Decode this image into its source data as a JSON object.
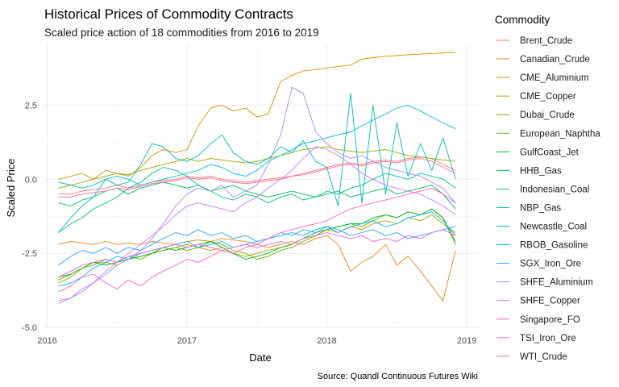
{
  "chart_data": {
    "type": "line",
    "title": "Historical Prices of Commodity Contracts",
    "subtitle": "Scaled price action of 18 commodities from 2016 to 2019",
    "xlabel": "Date",
    "ylabel": "Scaled Price",
    "caption": "Source: Quandl Continuous Futures Wiki",
    "legend_title": "Commodity",
    "legend_position": "right",
    "grid": true,
    "xlim": [
      2015.98,
      2019.08
    ],
    "ylim": [
      -5.05,
      4.55
    ],
    "x_ticks": [
      {
        "value": 2016,
        "label": "2016"
      },
      {
        "value": 2017,
        "label": "2017"
      },
      {
        "value": 2018,
        "label": "2018"
      },
      {
        "value": 2019,
        "label": "2019"
      }
    ],
    "y_ticks": [
      {
        "value": 2.5,
        "label": "2.5"
      },
      {
        "value": 0,
        "label": "0.0"
      },
      {
        "value": -2.5,
        "label": "-2.5"
      },
      {
        "value": -5,
        "label": "-5.0"
      }
    ],
    "x": [
      2016.08,
      2016.17,
      2016.25,
      2016.33,
      2016.42,
      2016.5,
      2016.58,
      2016.67,
      2016.75,
      2016.83,
      2016.92,
      2017.0,
      2017.08,
      2017.17,
      2017.25,
      2017.33,
      2017.42,
      2017.5,
      2017.58,
      2017.67,
      2017.75,
      2017.83,
      2017.92,
      2018.0,
      2018.08,
      2018.17,
      2018.25,
      2018.33,
      2018.42,
      2018.5,
      2018.58,
      2018.67,
      2018.75,
      2018.83,
      2018.92
    ],
    "series": [
      {
        "name": "Brent_Crude",
        "color": "#F8766D",
        "values": [
          -0.5,
          -0.5,
          -0.4,
          -0.35,
          -0.3,
          -0.2,
          -0.3,
          -0.2,
          -0.1,
          -0.05,
          0.0,
          0.1,
          0.05,
          0.1,
          0.0,
          -0.05,
          -0.1,
          -0.05,
          0.0,
          0.05,
          0.1,
          0.2,
          0.3,
          0.4,
          0.5,
          0.55,
          0.5,
          0.6,
          0.65,
          0.6,
          0.7,
          0.75,
          0.7,
          0.5,
          0.3
        ]
      },
      {
        "name": "Canadian_Crude",
        "color": "#E7861B",
        "values": [
          -2.2,
          -2.1,
          -2.15,
          -2.2,
          -2.1,
          -2.2,
          -2.15,
          -2.2,
          -2.1,
          -2.15,
          -2.2,
          -2.1,
          -2.05,
          -2.1,
          -2.0,
          -2.05,
          -2.1,
          -2.2,
          -2.3,
          -2.2,
          -2.1,
          -2.2,
          -2.0,
          -1.9,
          -2.2,
          -3.1,
          -2.8,
          -2.6,
          -2.2,
          -2.9,
          -2.6,
          -3.1,
          -3.6,
          -4.1,
          -2.4
        ]
      },
      {
        "name": "CME_Aluminium",
        "color": "#D39200",
        "values": [
          0.0,
          0.1,
          0.2,
          0.0,
          0.3,
          0.2,
          0.1,
          0.4,
          0.8,
          1.0,
          0.9,
          1.0,
          1.8,
          2.4,
          2.5,
          2.3,
          2.4,
          2.1,
          2.2,
          3.3,
          3.5,
          3.65,
          3.7,
          3.75,
          3.8,
          3.85,
          4.05,
          4.1,
          4.15,
          4.17,
          4.2,
          4.22,
          4.24,
          4.26,
          4.28
        ]
      },
      {
        "name": "CME_Copper",
        "color": "#B49E00",
        "values": [
          -3.5,
          -3.3,
          -3.0,
          -2.8,
          -2.8,
          -2.9,
          -2.7,
          -2.6,
          -2.5,
          -2.4,
          -2.3,
          -2.2,
          -2.3,
          -2.4,
          -2.3,
          -2.5,
          -2.6,
          -2.5,
          -2.4,
          -2.3,
          -2.2,
          -2.0,
          -1.9,
          -1.7,
          -1.8,
          -1.6,
          -1.7,
          -1.5,
          -1.4,
          -1.5,
          -1.3,
          -1.4,
          -1.2,
          -1.5,
          -1.8
        ]
      },
      {
        "name": "Dubai_Crude",
        "color": "#8EAB00",
        "values": [
          -0.3,
          -0.2,
          -0.1,
          0.0,
          0.1,
          0.2,
          0.15,
          0.3,
          0.4,
          0.5,
          0.6,
          0.7,
          0.6,
          0.7,
          0.65,
          0.6,
          0.55,
          0.6,
          0.7,
          0.8,
          0.9,
          1.0,
          1.05,
          1.1,
          1.0,
          0.95,
          0.9,
          0.95,
          1.0,
          0.9,
          0.8,
          0.75,
          0.7,
          0.65,
          0.6
        ]
      },
      {
        "name": "European_Naphtha",
        "color": "#64B200",
        "values": [
          -3.4,
          -3.2,
          -3.0,
          -2.9,
          -2.7,
          -2.8,
          -2.6,
          -2.7,
          -2.5,
          -2.4,
          -2.3,
          -2.4,
          -2.3,
          -2.1,
          -2.2,
          -2.4,
          -2.5,
          -2.7,
          -2.6,
          -2.4,
          -2.3,
          -2.1,
          -1.9,
          -1.7,
          -1.6,
          -1.5,
          -1.6,
          -1.4,
          -1.2,
          -1.3,
          -1.1,
          -1.2,
          -1.0,
          -1.3,
          -2.1
        ]
      },
      {
        "name": "GulfCoast_Jet",
        "color": "#00B81F",
        "values": [
          -3.3,
          -3.2,
          -3.0,
          -2.8,
          -2.9,
          -2.8,
          -2.7,
          -2.6,
          -2.5,
          -2.3,
          -2.4,
          -2.3,
          -2.2,
          -2.1,
          -2.3,
          -2.5,
          -2.7,
          -2.6,
          -2.5,
          -2.3,
          -2.2,
          -2.0,
          -1.8,
          -1.7,
          -1.6,
          -1.5,
          -1.5,
          -1.3,
          -1.2,
          -1.3,
          -1.1,
          -1.2,
          -1.0,
          -1.3,
          -2.2
        ]
      },
      {
        "name": "HHB_Gas",
        "color": "#00BD5C",
        "values": [
          -0.8,
          -0.9,
          -0.7,
          -0.6,
          -0.4,
          -0.3,
          -0.5,
          -0.3,
          -0.2,
          -0.1,
          -0.2,
          -0.3,
          -0.2,
          -0.4,
          -0.3,
          -0.2,
          -0.4,
          -0.5,
          -0.6,
          -0.5,
          -0.4,
          -0.5,
          -0.6,
          -0.5,
          -0.4,
          -0.6,
          -0.5,
          -0.4,
          -0.3,
          -0.5,
          -0.4,
          -0.3,
          -0.2,
          -0.5,
          -1.0
        ]
      },
      {
        "name": "Indonesian_Coal",
        "color": "#00C08D",
        "values": [
          -1.8,
          -1.5,
          -1.3,
          -1.0,
          -0.8,
          -0.6,
          -0.3,
          -0.1,
          0.2,
          0.4,
          0.3,
          0.1,
          -0.2,
          -0.4,
          -0.6,
          -0.7,
          -0.5,
          -0.6,
          -0.8,
          -0.6,
          -0.5,
          -0.7,
          -0.6,
          -0.4,
          -0.5,
          -0.3,
          -0.2,
          0.0,
          0.2,
          0.1,
          0.0,
          0.2,
          0.1,
          0.0,
          -0.3
        ]
      },
      {
        "name": "NBP_Gas",
        "color": "#00BFB5",
        "values": [
          -0.1,
          -0.2,
          -0.3,
          -0.2,
          0.0,
          -0.2,
          -0.1,
          0.5,
          1.2,
          1.1,
          0.7,
          0.6,
          0.8,
          1.2,
          1.5,
          0.9,
          0.6,
          0.5,
          0.7,
          1.1,
          0.9,
          1.3,
          0.6,
          0.4,
          -0.9,
          2.9,
          -0.8,
          2.5,
          -0.5,
          1.9,
          0.1,
          1.2,
          0.3,
          1.4,
          0.0
        ]
      },
      {
        "name": "Newcastle_Coal",
        "color": "#00BCD6",
        "values": [
          -1.8,
          -1.3,
          -0.9,
          -0.6,
          0.0,
          0.1,
          0.0,
          -0.2,
          -0.1,
          0.0,
          0.1,
          0.2,
          0.3,
          0.5,
          0.4,
          0.2,
          0.1,
          0.3,
          0.6,
          0.8,
          1.0,
          1.2,
          1.3,
          1.4,
          1.5,
          1.6,
          1.8,
          2.0,
          2.2,
          2.4,
          2.5,
          2.3,
          2.1,
          1.9,
          1.7
        ]
      },
      {
        "name": "RBOB_Gasoline",
        "color": "#00B3F1",
        "values": [
          -3.6,
          -3.5,
          -3.3,
          -3.0,
          -2.8,
          -2.6,
          -2.7,
          -2.5,
          -2.4,
          -2.3,
          -2.2,
          -2.1,
          -2.3,
          -2.2,
          -2.1,
          -2.3,
          -2.2,
          -2.1,
          -2.0,
          -1.9,
          -1.8,
          -1.9,
          -1.7,
          -1.6,
          -1.8,
          -1.6,
          -1.5,
          -1.4,
          -1.6,
          -1.5,
          -1.3,
          -1.2,
          -1.1,
          -1.4,
          -1.9
        ]
      },
      {
        "name": "SGX_Iron_Ore",
        "color": "#29A3FF",
        "values": [
          -2.9,
          -2.6,
          -2.4,
          -2.5,
          -2.3,
          -2.5,
          -2.3,
          -2.4,
          -2.2,
          -2.0,
          -1.8,
          -1.9,
          -1.7,
          -1.9,
          -1.8,
          -2.0,
          -1.9,
          -2.1,
          -2.0,
          -1.8,
          -1.9,
          -1.7,
          -1.8,
          -1.6,
          -1.7,
          -1.9,
          -1.8,
          -1.7,
          -1.9,
          -1.8,
          -2.0,
          -1.9,
          -1.8,
          -1.7,
          -1.6
        ]
      },
      {
        "name": "SHFE_Aluminium",
        "color": "#9C8DFF",
        "values": [
          -4.2,
          -4.0,
          -3.8,
          -3.5,
          -3.2,
          -2.9,
          -2.7,
          -2.4,
          -2.0,
          -1.5,
          -0.9,
          -0.5,
          -0.3,
          -0.4,
          -0.2,
          -0.6,
          -0.4,
          -0.2,
          0.5,
          1.5,
          3.1,
          2.9,
          1.6,
          1.2,
          0.9,
          0.7,
          0.8,
          0.6,
          0.4,
          0.3,
          0.2,
          0.1,
          -0.1,
          -0.3,
          -0.8
        ]
      },
      {
        "name": "SHFE_Copper",
        "color": "#D277FF",
        "values": [
          -4.1,
          -4.0,
          -3.7,
          -3.5,
          -3.1,
          -2.8,
          -2.5,
          -2.2,
          -1.9,
          -1.6,
          -1.2,
          -0.9,
          -0.8,
          -0.9,
          -1.0,
          -1.1,
          -0.8,
          -0.6,
          -0.3,
          0.0,
          0.3,
          0.7,
          1.1,
          1.0,
          0.8,
          0.5,
          0.2,
          0.0,
          -0.2,
          -0.3,
          -0.4,
          -0.5,
          -0.7,
          -0.9,
          -1.2
        ]
      },
      {
        "name": "Singapore_FO",
        "color": "#F161E7",
        "values": [
          -3.3,
          -3.1,
          -2.9,
          -2.8,
          -2.7,
          -2.8,
          -2.6,
          -2.5,
          -2.4,
          -2.3,
          -2.2,
          -2.3,
          -2.2,
          -2.3,
          -2.4,
          -2.3,
          -2.2,
          -2.3,
          -2.2,
          -2.1,
          -2.2,
          -2.0,
          -1.9,
          -1.8,
          -1.9,
          -2.0,
          -1.9,
          -2.1,
          -2.0,
          -2.1,
          -1.9,
          -2.0,
          -1.8,
          -1.7,
          -1.9
        ]
      },
      {
        "name": "TSI_Iron_Ore",
        "color": "#FF61C9",
        "values": [
          -3.8,
          -3.6,
          -3.3,
          -3.2,
          -3.5,
          -3.7,
          -3.4,
          -3.6,
          -3.3,
          -3.1,
          -2.9,
          -2.7,
          -2.8,
          -2.6,
          -2.4,
          -2.5,
          -2.3,
          -2.2,
          -2.0,
          -1.8,
          -1.7,
          -1.6,
          -1.5,
          -1.4,
          -1.2,
          -1.0,
          -0.9,
          -0.8,
          -0.7,
          -0.6,
          -0.5,
          -0.4,
          -0.3,
          -0.5,
          -0.8
        ]
      },
      {
        "name": "WTI_Crude",
        "color": "#FF68A1",
        "values": [
          -0.6,
          -0.6,
          -0.5,
          -0.45,
          -0.4,
          -0.3,
          -0.35,
          -0.25,
          -0.15,
          -0.1,
          -0.05,
          0.05,
          0.0,
          0.05,
          -0.05,
          -0.1,
          -0.15,
          -0.1,
          -0.05,
          0.0,
          0.1,
          0.15,
          0.25,
          0.35,
          0.45,
          0.5,
          0.45,
          0.55,
          0.6,
          0.55,
          0.65,
          0.7,
          0.6,
          0.4,
          0.2
        ]
      }
    ]
  }
}
